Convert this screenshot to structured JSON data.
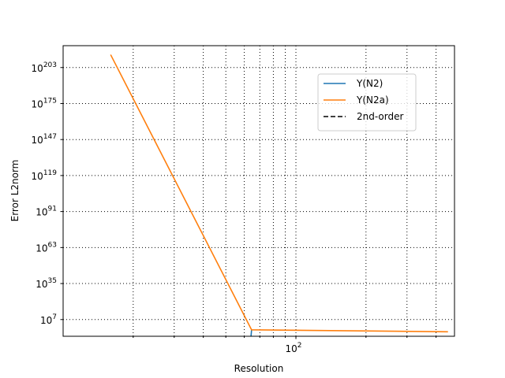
{
  "chart_data": {
    "type": "line",
    "xlabel": "Resolution",
    "ylabel": "Error L2norm",
    "x_scale": "log",
    "y_scale": "log",
    "xlim": [
      10,
      480
    ],
    "ylim": [
      -6,
      220
    ],
    "x_major_ticks": [
      {
        "value": 100,
        "base": "10",
        "exp": "2"
      }
    ],
    "x_grid": [
      20,
      30,
      40,
      50,
      60,
      70,
      80,
      90,
      100,
      200,
      300,
      400
    ],
    "y_ticks": [
      {
        "value": 7,
        "base": "10",
        "exp": "7"
      },
      {
        "value": 35,
        "base": "10",
        "exp": "35"
      },
      {
        "value": 63,
        "base": "10",
        "exp": "63"
      },
      {
        "value": 91,
        "base": "10",
        "exp": "91"
      },
      {
        "value": 119,
        "base": "10",
        "exp": "119"
      },
      {
        "value": 147,
        "base": "10",
        "exp": "147"
      },
      {
        "value": 175,
        "base": "10",
        "exp": "175"
      },
      {
        "value": 203,
        "base": "10",
        "exp": "203"
      }
    ],
    "grid": true,
    "grid_style": "dotted",
    "legend_position": "top-right",
    "series": [
      {
        "name": "Y(N2)",
        "color": "#1f77b4",
        "style": "solid",
        "x": [
          64,
          64.5
        ],
        "y": [
          -8,
          -1
        ]
      },
      {
        "name": "Y(N2a)",
        "color": "#ff7f0e",
        "style": "solid",
        "x": [
          16,
          64.5,
          450
        ],
        "y": [
          213,
          -1,
          -2.5
        ]
      },
      {
        "name": "2nd-order",
        "color": "#000000",
        "style": "dashed",
        "x": [],
        "y": []
      }
    ]
  }
}
